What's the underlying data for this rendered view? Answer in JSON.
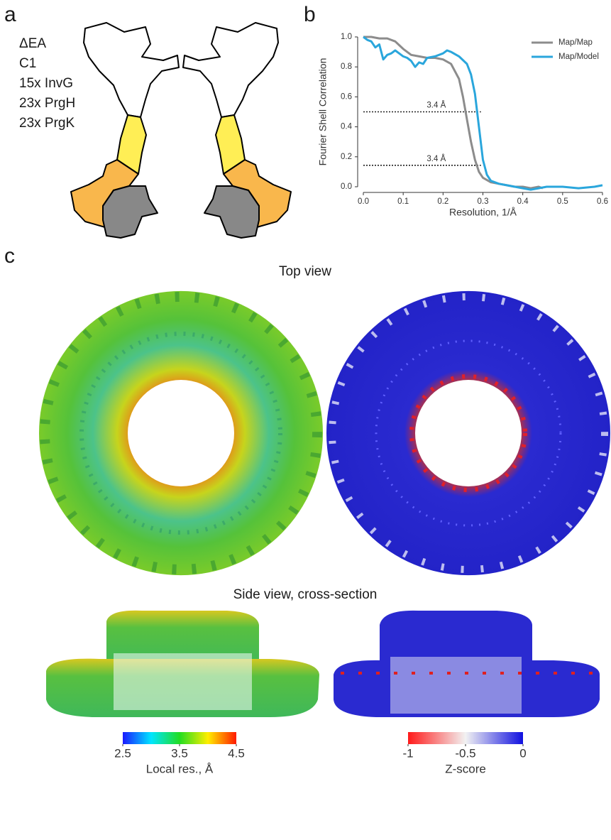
{
  "panel_labels": [
    "a",
    "b",
    "c"
  ],
  "panel_a": {
    "lines": [
      "ΔEA",
      "C1",
      "15x InvG",
      "23x PrgH",
      "23x PrgK"
    ]
  },
  "chart_data": {
    "type": "line",
    "xlabel": "Resolution, 1/Å",
    "ylabel": "Fourier Shell Correlation",
    "xlim": [
      0,
      0.6
    ],
    "ylim": [
      0,
      1.0
    ],
    "xticks": [
      {
        "value": 0,
        "label": "0.0"
      },
      0.1,
      0.2,
      0.3,
      0.4,
      0.5,
      0.6
    ],
    "yticks": [
      {
        "value": 0,
        "label": "0.0"
      },
      0.2,
      0.4,
      0.6,
      0.8,
      {
        "value": 1,
        "label": "1.0"
      }
    ],
    "legend": "upper right",
    "series": [
      {
        "name": "Map/Map",
        "color": "#8c8c8c",
        "x": [
          0,
          0.02,
          0.04,
          0.06,
          0.08,
          0.1,
          0.12,
          0.14,
          0.16,
          0.18,
          0.2,
          0.22,
          0.24,
          0.25,
          0.26,
          0.27,
          0.28,
          0.29,
          0.3,
          0.32,
          0.34,
          0.36,
          0.38,
          0.4,
          0.42,
          0.44,
          0.45
        ],
        "values": [
          1.0,
          1.0,
          0.99,
          0.99,
          0.97,
          0.92,
          0.88,
          0.87,
          0.86,
          0.86,
          0.85,
          0.82,
          0.72,
          0.6,
          0.45,
          0.3,
          0.18,
          0.1,
          0.06,
          0.03,
          0.02,
          0.01,
          0.0,
          0.0,
          -0.01,
          0.0,
          -0.01
        ]
      },
      {
        "name": "Map/Model",
        "color": "#2aa6dc",
        "x": [
          0,
          0.01,
          0.02,
          0.03,
          0.04,
          0.05,
          0.06,
          0.07,
          0.08,
          0.09,
          0.1,
          0.11,
          0.12,
          0.13,
          0.14,
          0.15,
          0.16,
          0.18,
          0.2,
          0.21,
          0.22,
          0.24,
          0.26,
          0.27,
          0.28,
          0.29,
          0.3,
          0.31,
          0.32,
          0.34,
          0.36,
          0.38,
          0.4,
          0.42,
          0.44,
          0.46,
          0.5,
          0.54,
          0.58,
          0.6
        ],
        "values": [
          1.0,
          0.98,
          0.97,
          0.93,
          0.95,
          0.85,
          0.88,
          0.89,
          0.91,
          0.89,
          0.87,
          0.86,
          0.84,
          0.8,
          0.83,
          0.82,
          0.86,
          0.87,
          0.89,
          0.91,
          0.9,
          0.87,
          0.82,
          0.75,
          0.62,
          0.4,
          0.18,
          0.08,
          0.04,
          0.02,
          0.01,
          0.0,
          -0.01,
          -0.02,
          -0.01,
          0.0,
          0.0,
          -0.01,
          0.0,
          0.01
        ]
      }
    ],
    "thresholds": [
      {
        "y": 0.5,
        "x_end": 0.295,
        "label": "3.4 Å"
      },
      {
        "y": 0.143,
        "x_end": 0.295,
        "label": "3.4 Å"
      }
    ]
  },
  "panel_c": {
    "top_title": "Top view",
    "side_title": "Side view, cross-section",
    "colorbars": [
      {
        "label": "Local res., Å",
        "lim": [
          2.5,
          4.5
        ],
        "ticks": [
          2.5,
          3.5,
          4.5
        ],
        "colors": [
          "#1a1aff",
          "#00e5ff",
          "#22dd22",
          "#ffee00",
          "#ff1a00"
        ]
      },
      {
        "label": "Z-score",
        "lim": [
          -1,
          0
        ],
        "ticks": [
          -1,
          -0.5,
          0
        ],
        "colors": [
          "#ff1a1a",
          "#f2f2f2",
          "#1010e0"
        ]
      }
    ]
  }
}
